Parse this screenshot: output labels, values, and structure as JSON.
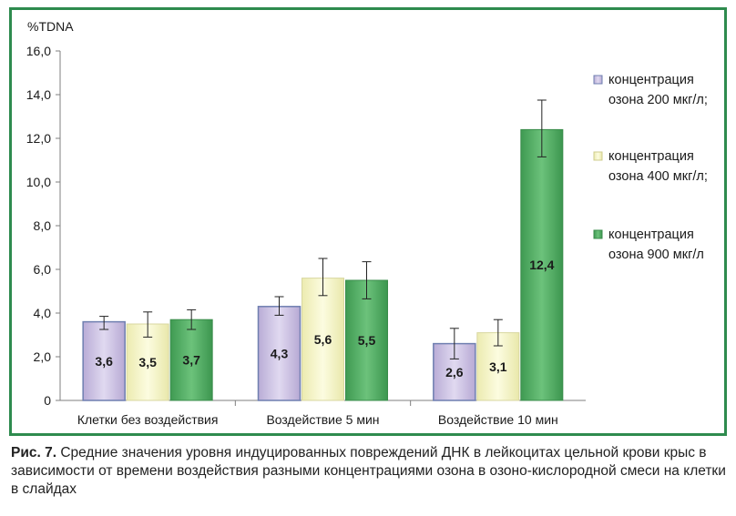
{
  "chart_data": {
    "type": "bar",
    "ylabel": "%TDNA",
    "ylim": [
      0,
      16
    ],
    "yticks": [
      "0",
      "2,0",
      "4,0",
      "6,0",
      "8,0",
      "10,0",
      "12,0",
      "14,0",
      "16,0"
    ],
    "ytick_values": [
      0,
      2,
      4,
      6,
      8,
      10,
      12,
      14,
      16
    ],
    "categories": [
      "Клетки без воздействия",
      "Воздействие 5 мин",
      "Воздействие 10 мин"
    ],
    "legend_position": "right",
    "series": [
      {
        "legend_line1": "концентрация",
        "legend_line2": "озона 200 мкг/л;",
        "color": "#cdc3e3",
        "values": [
          3.6,
          4.3,
          2.6
        ],
        "labels": [
          "3,6",
          "4,3",
          "2,6"
        ],
        "error_low": [
          3.25,
          3.9,
          1.9
        ],
        "error_high": [
          3.85,
          4.75,
          3.3
        ]
      },
      {
        "legend_line1": "концентрация",
        "legend_line2": "озона 400 мкг/л;",
        "color": "#f6f5c6",
        "values": [
          3.5,
          5.6,
          3.1
        ],
        "labels": [
          "3,5",
          "5,6",
          "3,1"
        ],
        "error_low": [
          2.9,
          4.8,
          2.5
        ],
        "error_high": [
          4.05,
          6.5,
          3.7
        ]
      },
      {
        "legend_line1": "концентрация",
        "legend_line2": "озона 900 мкг/л",
        "color": "#55ae63",
        "values": [
          3.7,
          5.5,
          12.4
        ],
        "labels": [
          "3,7",
          "5,5",
          "12,4"
        ],
        "error_low": [
          3.25,
          4.65,
          11.15
        ],
        "error_high": [
          4.15,
          6.35,
          13.75
        ]
      }
    ]
  },
  "caption": {
    "label": "Рис. 7.",
    "text": " Средние значения уровня индуцированных повреждений ДНК в лейкоцитах цельной крови крыс в зависимости от времени воздействия разными концентрациями озона в озоно-кислородной смеси на клетки в слайдах"
  }
}
